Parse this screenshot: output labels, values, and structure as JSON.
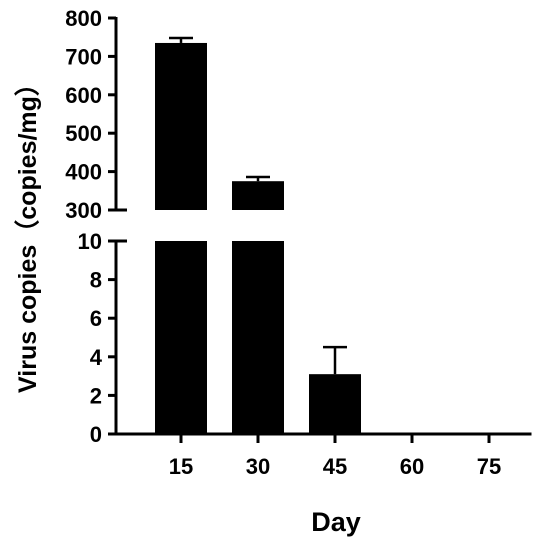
{
  "chart_data": {
    "type": "bar",
    "xlabel": "Day",
    "ylabel": "Virus copies（copies/mg）",
    "categories": [
      "15",
      "30",
      "45",
      "60",
      "75"
    ],
    "values": [
      735,
      375,
      3.1,
      0,
      0
    ],
    "error_upper": [
      748,
      386,
      4.5,
      0,
      0
    ],
    "colors": {
      "bar": "#000000",
      "axis": "#000000",
      "background": "#ffffff"
    },
    "y_axis_broken": true,
    "y_segments": [
      {
        "range": [
          0,
          10
        ],
        "ticks": [
          0,
          2,
          4,
          6,
          8,
          10
        ]
      },
      {
        "range": [
          300,
          800
        ],
        "ticks": [
          300,
          400,
          500,
          600,
          700,
          800
        ]
      }
    ],
    "grid": false,
    "legend": "none"
  }
}
